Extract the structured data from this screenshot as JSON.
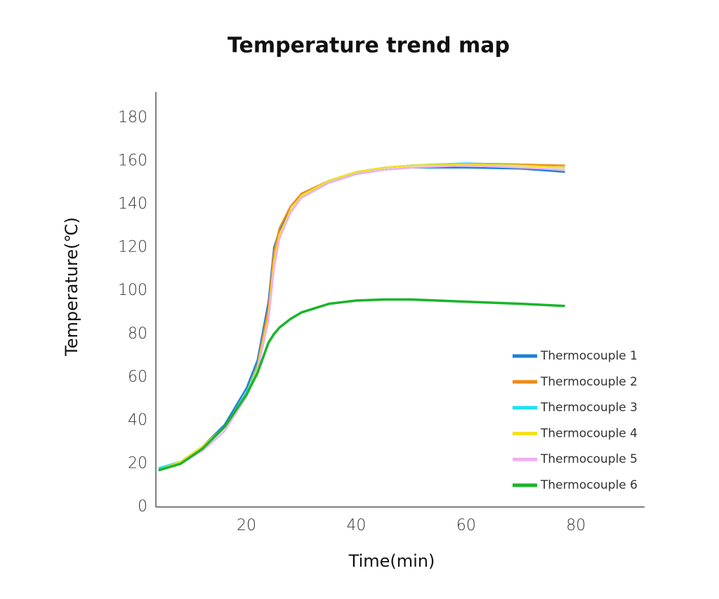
{
  "chart_data": {
    "type": "line",
    "title": "Temperature trend map",
    "x_label": "Time(min)",
    "y_label": "Temperature(℃)",
    "x": [
      4,
      8,
      12,
      16,
      20,
      22,
      24,
      25,
      26,
      28,
      30,
      35,
      40,
      45,
      50,
      60,
      70,
      78
    ],
    "series": [
      {
        "name": "Thermocouple 1",
        "color": "#1e7fd8",
        "values": [
          18,
          21,
          28,
          38,
          55,
          68,
          95,
          120,
          128,
          137,
          143,
          150,
          154,
          156,
          157,
          157,
          156.5,
          155
        ]
      },
      {
        "name": "Thermocouple 2",
        "color": "#f08a1c",
        "values": [
          17,
          20,
          27,
          37,
          53,
          66,
          92,
          118,
          129,
          139,
          145,
          151,
          155,
          157,
          158,
          159,
          158.5,
          158
        ]
      },
      {
        "name": "Thermocouple 3",
        "color": "#22e0f0",
        "values": [
          18,
          21,
          28,
          37,
          53,
          65,
          88,
          112,
          125,
          137,
          144,
          151,
          155,
          157,
          158,
          159,
          158,
          157
        ]
      },
      {
        "name": "Thermocouple 4",
        "color": "#f5e11a",
        "values": [
          17,
          21,
          28,
          37,
          52,
          64,
          88,
          113,
          126,
          137,
          144,
          151,
          155,
          157,
          158,
          158.5,
          158,
          157
        ]
      },
      {
        "name": "Thermocouple 5",
        "color": "#f0b0f0",
        "values": [
          17,
          20,
          26,
          35,
          51,
          63,
          86,
          110,
          124,
          136,
          143,
          150,
          154,
          156,
          157,
          158,
          157,
          156
        ]
      },
      {
        "name": "Thermocouple 6",
        "color": "#1ab52a",
        "values": [
          17,
          20,
          27,
          37,
          52,
          62,
          76,
          80,
          83,
          87,
          90,
          94,
          95.5,
          96,
          96,
          95,
          94,
          93
        ]
      }
    ],
    "xlim": [
      3.5,
      92.5
    ],
    "xticks": [
      20,
      40,
      60,
      80
    ],
    "ylim": [
      0,
      192
    ],
    "yticks": [
      0,
      20,
      40,
      60,
      80,
      100,
      120,
      140,
      160,
      180
    ],
    "grid": false,
    "legend": "lower right"
  }
}
